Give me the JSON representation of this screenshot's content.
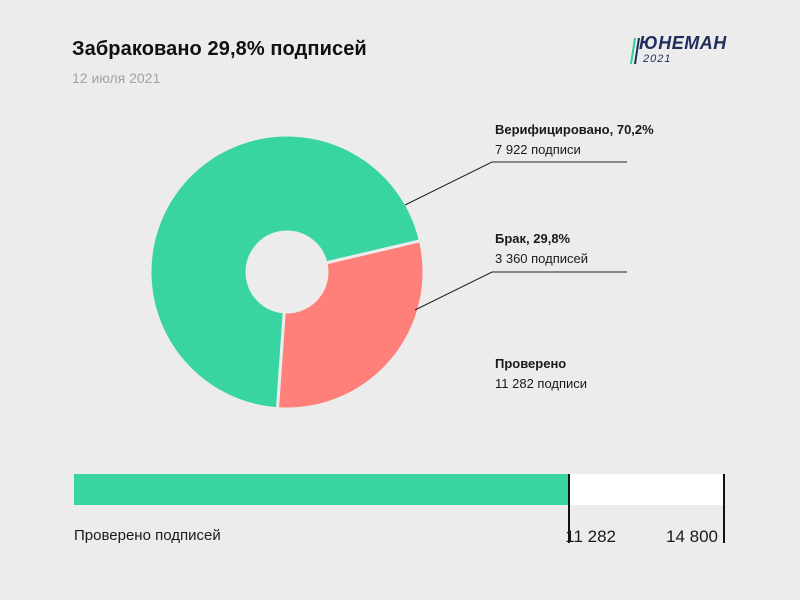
{
  "header": {
    "title": "Забраковано 29,8% подписей",
    "date": "12 июля 2021"
  },
  "logo": {
    "name": "ЮНЕМАН",
    "year": "2021",
    "colors": [
      "#2ecf9c",
      "#1e2d5c"
    ]
  },
  "colors": {
    "verified": "#38d4a2",
    "rejected": "#ff7f7a",
    "progress": "#38d4a2",
    "remaining": "#ffffff",
    "background": "#ececec"
  },
  "labels": {
    "verified": {
      "title": "Верифицировано, 70,2%",
      "sub": "7 922 подписи"
    },
    "rejected": {
      "title": "Брак, 29,8%",
      "sub": "3 360 подписей"
    },
    "checked": {
      "title": "Проверено",
      "sub": "11 282 подписи"
    }
  },
  "bar": {
    "caption": "Проверено подписей",
    "checked_label": "11 282",
    "total_label": "14 800"
  },
  "chart_data": [
    {
      "type": "pie",
      "donut": true,
      "slices": [
        {
          "name": "Верифицировано",
          "value": 7922,
          "percent": 70.2,
          "color": "#38d4a2"
        },
        {
          "name": "Брак",
          "value": 3360,
          "percent": 29.8,
          "color": "#ff7f7a"
        }
      ],
      "total": 11282
    },
    {
      "type": "bar",
      "orientation": "horizontal",
      "categories": [
        "Проверено подписей"
      ],
      "values": [
        11282
      ],
      "max": 14800
    }
  ]
}
